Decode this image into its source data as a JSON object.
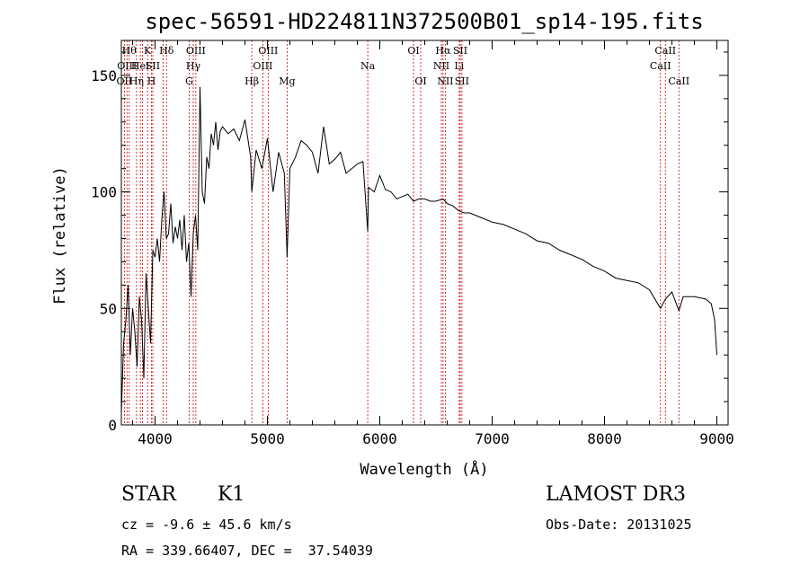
{
  "chart_data": {
    "type": "line",
    "title": "spec-56591-HD224811N372500B01_sp14-195.fits",
    "xlabel": "Wavelength (Å)",
    "ylabel": "Flux (relative)",
    "xlim": [
      3700,
      9100
    ],
    "ylim": [
      0,
      165
    ],
    "xticks": [
      4000,
      5000,
      6000,
      7000,
      8000,
      9000
    ],
    "yticks": [
      0,
      50,
      100,
      150
    ],
    "grid": false,
    "line_color": "#000000",
    "marker_color": "#cc0000",
    "series": [
      {
        "x": [
          3700,
          3720,
          3740,
          3760,
          3780,
          3800,
          3820,
          3840,
          3860,
          3880,
          3900,
          3920,
          3940,
          3960,
          3980,
          4000,
          4020,
          4040,
          4060,
          4080,
          4100,
          4120,
          4140,
          4160,
          4180,
          4200,
          4220,
          4240,
          4260,
          4280,
          4300,
          4320,
          4340,
          4360,
          4380,
          4400,
          4420,
          4440,
          4460,
          4480,
          4500,
          4520,
          4540,
          4560,
          4580,
          4600,
          4650,
          4700,
          4750,
          4800,
          4850,
          4861,
          4900,
          4950,
          5000,
          5050,
          5100,
          5150,
          5175,
          5200,
          5250,
          5300,
          5350,
          5400,
          5450,
          5500,
          5550,
          5600,
          5650,
          5700,
          5750,
          5800,
          5850,
          5893,
          5900,
          5950,
          6000,
          6050,
          6100,
          6150,
          6200,
          6250,
          6300,
          6350,
          6400,
          6450,
          6500,
          6563,
          6600,
          6650,
          6700,
          6750,
          6800,
          6900,
          7000,
          7100,
          7200,
          7300,
          7400,
          7500,
          7600,
          7700,
          7800,
          7900,
          8000,
          8100,
          8200,
          8300,
          8400,
          8498,
          8542,
          8600,
          8662,
          8700,
          8800,
          8900,
          8950,
          8980,
          9000
        ],
        "y": [
          5,
          35,
          45,
          60,
          30,
          50,
          40,
          25,
          55,
          45,
          20,
          65,
          50,
          35,
          75,
          72,
          80,
          70,
          88,
          100,
          80,
          82,
          95,
          78,
          85,
          80,
          88,
          75,
          90,
          70,
          78,
          55,
          82,
          90,
          75,
          145,
          100,
          95,
          115,
          110,
          125,
          120,
          130,
          118,
          126,
          128,
          125,
          127,
          122,
          131,
          115,
          100,
          118,
          110,
          123,
          100,
          117,
          108,
          72,
          110,
          115,
          122,
          120,
          117,
          108,
          128,
          112,
          114,
          117,
          108,
          110,
          112,
          113,
          83,
          102,
          100,
          107,
          101,
          100,
          97,
          98,
          99,
          96,
          97,
          97,
          96,
          96,
          97,
          95,
          94,
          92,
          91,
          91,
          89,
          87,
          86,
          84,
          82,
          79,
          78,
          75,
          73,
          71,
          68,
          66,
          63,
          62,
          61,
          58,
          50,
          54,
          57,
          49,
          55,
          55,
          54,
          52,
          45,
          30
        ]
      }
    ],
    "line_markers": [
      {
        "x": 3727,
        "label": "OII",
        "row": 2
      },
      {
        "x": 3750,
        "label": "OIII",
        "row": 1
      },
      {
        "x": 3770,
        "label": "Hθ",
        "row": 0
      },
      {
        "x": 3835,
        "label": "Hη",
        "row": 2
      },
      {
        "x": 3869,
        "label": "HeI",
        "row": 1
      },
      {
        "x": 3889,
        "label": "",
        "row": 0
      },
      {
        "x": 3933,
        "label": "K",
        "row": 0
      },
      {
        "x": 3968,
        "label": "H",
        "row": 2
      },
      {
        "x": 3980,
        "label": "SII",
        "row": 1
      },
      {
        "x": 4102,
        "label": "Hδ",
        "row": 0
      },
      {
        "x": 4072,
        "label": "",
        "row": 1
      },
      {
        "x": 4304,
        "label": "G",
        "row": 2
      },
      {
        "x": 4340,
        "label": "Hγ",
        "row": 1
      },
      {
        "x": 4363,
        "label": "OIII",
        "row": 0
      },
      {
        "x": 4861,
        "label": "Hβ",
        "row": 2
      },
      {
        "x": 4959,
        "label": "OIII",
        "row": 1
      },
      {
        "x": 5007,
        "label": "OIII",
        "row": 0
      },
      {
        "x": 5175,
        "label": "Mg",
        "row": 2
      },
      {
        "x": 5893,
        "label": "Na",
        "row": 1
      },
      {
        "x": 6300,
        "label": "OI",
        "row": 0
      },
      {
        "x": 6364,
        "label": "OI",
        "row": 2
      },
      {
        "x": 6548,
        "label": "NII",
        "row": 1
      },
      {
        "x": 6563,
        "label": "Hα",
        "row": 0
      },
      {
        "x": 6583,
        "label": "NII",
        "row": 2
      },
      {
        "x": 6707,
        "label": "Li",
        "row": 1
      },
      {
        "x": 6716,
        "label": "SII",
        "row": 0
      },
      {
        "x": 6731,
        "label": "SII",
        "row": 2
      },
      {
        "x": 8498,
        "label": "CaII",
        "row": 1
      },
      {
        "x": 8542,
        "label": "CaII",
        "row": 0
      },
      {
        "x": 8662,
        "label": "CaII",
        "row": 2
      }
    ]
  },
  "info": {
    "object_class": "STAR",
    "subclass": "K1",
    "survey": "LAMOST DR3",
    "redshift_line": "cz = -9.6 ± 45.6 km/s",
    "obs_date_line": "Obs-Date: 20131025",
    "coords_line": "RA = 339.66407, DEC =  37.54039"
  }
}
